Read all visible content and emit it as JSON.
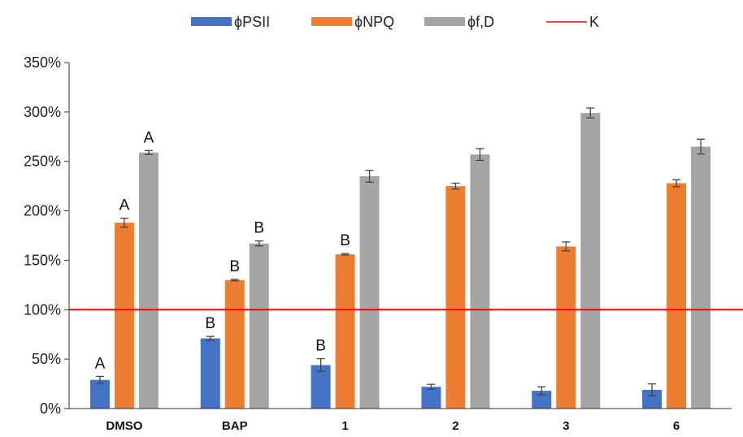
{
  "chart_data": {
    "type": "bar",
    "title": "",
    "xlabel": "",
    "ylabel": "",
    "categories": [
      "DMSO",
      "BAP",
      "1",
      "2",
      "3",
      "6"
    ],
    "ylim": [
      0,
      350
    ],
    "yticks": [
      0,
      50,
      100,
      150,
      200,
      250,
      300,
      350
    ],
    "ytick_format": "%",
    "grid": false,
    "legend_position": "top",
    "series": [
      {
        "name": "ϕPSII",
        "color": "#4472C4",
        "values": [
          29,
          71,
          44,
          22,
          18,
          19
        ],
        "errors": [
          3.5,
          2,
          6.5,
          2.5,
          4,
          6
        ],
        "letters": [
          "A",
          "B",
          "B",
          "",
          "",
          ""
        ]
      },
      {
        "name": "ϕNPQ",
        "color": "#ED7D31",
        "values": [
          188,
          130,
          156,
          225,
          164,
          228
        ],
        "errors": [
          4.5,
          0.8,
          0.8,
          3,
          4.5,
          3.5
        ],
        "letters": [
          "A",
          "B",
          "B",
          "",
          "",
          ""
        ]
      },
      {
        "name": "ϕf,D",
        "color": "#A5A5A5",
        "values": [
          259,
          167,
          235,
          257,
          299,
          265
        ],
        "errors": [
          2,
          2.5,
          6,
          6,
          5,
          7.5
        ],
        "letters": [
          "A",
          "B",
          "",
          "",
          "",
          ""
        ]
      }
    ],
    "reference_line": {
      "name": "K",
      "value": 100,
      "color": "#FF0000"
    }
  }
}
